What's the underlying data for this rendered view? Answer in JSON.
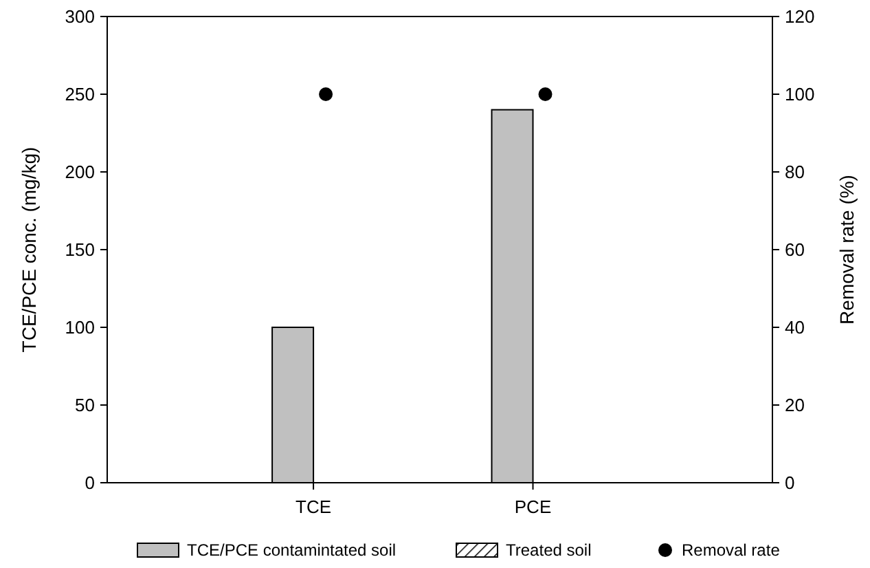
{
  "chart_data": {
    "type": "bar",
    "categories": [
      "TCE",
      "PCE"
    ],
    "series": [
      {
        "name": "TCE/PCE contamintated soil",
        "color": "#c0c0c0",
        "values": [
          100,
          240
        ]
      },
      {
        "name": "Treated soil",
        "color": "#000000",
        "values": [
          0,
          0
        ]
      },
      {
        "name": "Removal rate",
        "type": "scatter",
        "axis": "y2",
        "color": "#000000",
        "x": [
          "TCE",
          "PCE"
        ],
        "values": [
          100,
          100
        ]
      }
    ],
    "ylabel": "TCE/PCE conc. (mg/kg)",
    "y2label": "Removal rate (%)",
    "ylim": [
      0,
      300
    ],
    "yticks": [
      0,
      50,
      100,
      150,
      200,
      250,
      300
    ],
    "y2lim": [
      0,
      120
    ],
    "y2ticks": [
      0,
      20,
      40,
      60,
      80,
      100,
      120
    ],
    "marker": "circle",
    "legend": "bottom",
    "grid": false
  }
}
